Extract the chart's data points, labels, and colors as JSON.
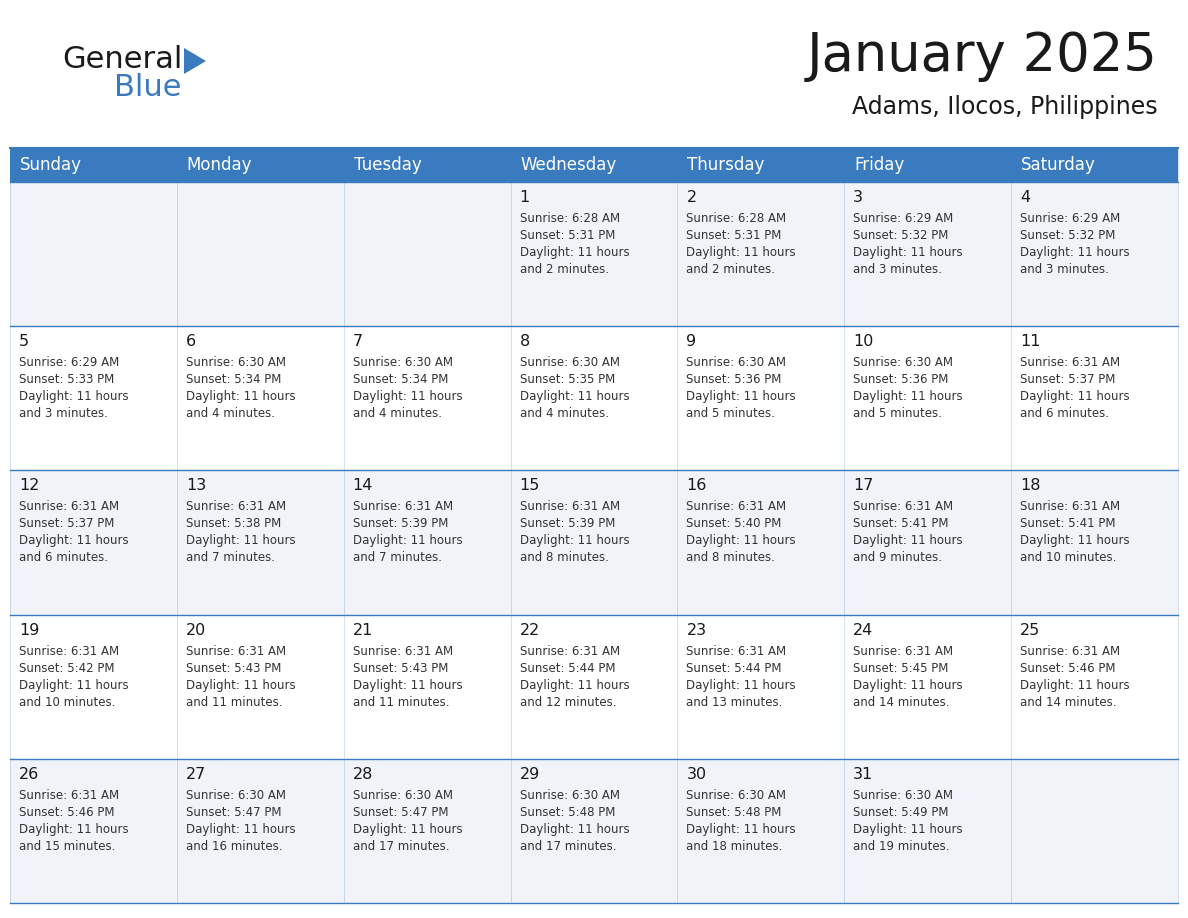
{
  "title": "January 2025",
  "subtitle": "Adams, Ilocos, Philippines",
  "header_color": "#3a7abf",
  "header_text_color": "#ffffff",
  "cell_bg_alt": "#f0f4f8",
  "cell_bg_white": "#ffffff",
  "border_color": "#3a7abf",
  "border_color_light": "#7aafd4",
  "day_headers": [
    "Sunday",
    "Monday",
    "Tuesday",
    "Wednesday",
    "Thursday",
    "Friday",
    "Saturday"
  ],
  "title_color": "#1a1a1a",
  "subtitle_color": "#1a1a1a",
  "day_num_color": "#1a1a1a",
  "info_color": "#333333",
  "logo_general_color": "#1a1a1a",
  "logo_blue_color": "#3a7abf",
  "logo_triangle_color": "#3a7abf",
  "days": [
    {
      "day": 1,
      "col": 3,
      "row": 0,
      "sunrise": "6:28 AM",
      "sunset": "5:31 PM",
      "daylight": "11 hours and 2 minutes."
    },
    {
      "day": 2,
      "col": 4,
      "row": 0,
      "sunrise": "6:28 AM",
      "sunset": "5:31 PM",
      "daylight": "11 hours and 2 minutes."
    },
    {
      "day": 3,
      "col": 5,
      "row": 0,
      "sunrise": "6:29 AM",
      "sunset": "5:32 PM",
      "daylight": "11 hours and 3 minutes."
    },
    {
      "day": 4,
      "col": 6,
      "row": 0,
      "sunrise": "6:29 AM",
      "sunset": "5:32 PM",
      "daylight": "11 hours and 3 minutes."
    },
    {
      "day": 5,
      "col": 0,
      "row": 1,
      "sunrise": "6:29 AM",
      "sunset": "5:33 PM",
      "daylight": "11 hours and 3 minutes."
    },
    {
      "day": 6,
      "col": 1,
      "row": 1,
      "sunrise": "6:30 AM",
      "sunset": "5:34 PM",
      "daylight": "11 hours and 4 minutes."
    },
    {
      "day": 7,
      "col": 2,
      "row": 1,
      "sunrise": "6:30 AM",
      "sunset": "5:34 PM",
      "daylight": "11 hours and 4 minutes."
    },
    {
      "day": 8,
      "col": 3,
      "row": 1,
      "sunrise": "6:30 AM",
      "sunset": "5:35 PM",
      "daylight": "11 hours and 4 minutes."
    },
    {
      "day": 9,
      "col": 4,
      "row": 1,
      "sunrise": "6:30 AM",
      "sunset": "5:36 PM",
      "daylight": "11 hours and 5 minutes."
    },
    {
      "day": 10,
      "col": 5,
      "row": 1,
      "sunrise": "6:30 AM",
      "sunset": "5:36 PM",
      "daylight": "11 hours and 5 minutes."
    },
    {
      "day": 11,
      "col": 6,
      "row": 1,
      "sunrise": "6:31 AM",
      "sunset": "5:37 PM",
      "daylight": "11 hours and 6 minutes."
    },
    {
      "day": 12,
      "col": 0,
      "row": 2,
      "sunrise": "6:31 AM",
      "sunset": "5:37 PM",
      "daylight": "11 hours and 6 minutes."
    },
    {
      "day": 13,
      "col": 1,
      "row": 2,
      "sunrise": "6:31 AM",
      "sunset": "5:38 PM",
      "daylight": "11 hours and 7 minutes."
    },
    {
      "day": 14,
      "col": 2,
      "row": 2,
      "sunrise": "6:31 AM",
      "sunset": "5:39 PM",
      "daylight": "11 hours and 7 minutes."
    },
    {
      "day": 15,
      "col": 3,
      "row": 2,
      "sunrise": "6:31 AM",
      "sunset": "5:39 PM",
      "daylight": "11 hours and 8 minutes."
    },
    {
      "day": 16,
      "col": 4,
      "row": 2,
      "sunrise": "6:31 AM",
      "sunset": "5:40 PM",
      "daylight": "11 hours and 8 minutes."
    },
    {
      "day": 17,
      "col": 5,
      "row": 2,
      "sunrise": "6:31 AM",
      "sunset": "5:41 PM",
      "daylight": "11 hours and 9 minutes."
    },
    {
      "day": 18,
      "col": 6,
      "row": 2,
      "sunrise": "6:31 AM",
      "sunset": "5:41 PM",
      "daylight": "11 hours and 10 minutes."
    },
    {
      "day": 19,
      "col": 0,
      "row": 3,
      "sunrise": "6:31 AM",
      "sunset": "5:42 PM",
      "daylight": "11 hours and 10 minutes."
    },
    {
      "day": 20,
      "col": 1,
      "row": 3,
      "sunrise": "6:31 AM",
      "sunset": "5:43 PM",
      "daylight": "11 hours and 11 minutes."
    },
    {
      "day": 21,
      "col": 2,
      "row": 3,
      "sunrise": "6:31 AM",
      "sunset": "5:43 PM",
      "daylight": "11 hours and 11 minutes."
    },
    {
      "day": 22,
      "col": 3,
      "row": 3,
      "sunrise": "6:31 AM",
      "sunset": "5:44 PM",
      "daylight": "11 hours and 12 minutes."
    },
    {
      "day": 23,
      "col": 4,
      "row": 3,
      "sunrise": "6:31 AM",
      "sunset": "5:44 PM",
      "daylight": "11 hours and 13 minutes."
    },
    {
      "day": 24,
      "col": 5,
      "row": 3,
      "sunrise": "6:31 AM",
      "sunset": "5:45 PM",
      "daylight": "11 hours and 14 minutes."
    },
    {
      "day": 25,
      "col": 6,
      "row": 3,
      "sunrise": "6:31 AM",
      "sunset": "5:46 PM",
      "daylight": "11 hours and 14 minutes."
    },
    {
      "day": 26,
      "col": 0,
      "row": 4,
      "sunrise": "6:31 AM",
      "sunset": "5:46 PM",
      "daylight": "11 hours and 15 minutes."
    },
    {
      "day": 27,
      "col": 1,
      "row": 4,
      "sunrise": "6:30 AM",
      "sunset": "5:47 PM",
      "daylight": "11 hours and 16 minutes."
    },
    {
      "day": 28,
      "col": 2,
      "row": 4,
      "sunrise": "6:30 AM",
      "sunset": "5:47 PM",
      "daylight": "11 hours and 17 minutes."
    },
    {
      "day": 29,
      "col": 3,
      "row": 4,
      "sunrise": "6:30 AM",
      "sunset": "5:48 PM",
      "daylight": "11 hours and 17 minutes."
    },
    {
      "day": 30,
      "col": 4,
      "row": 4,
      "sunrise": "6:30 AM",
      "sunset": "5:48 PM",
      "daylight": "11 hours and 18 minutes."
    },
    {
      "day": 31,
      "col": 5,
      "row": 4,
      "sunrise": "6:30 AM",
      "sunset": "5:49 PM",
      "daylight": "11 hours and 19 minutes."
    }
  ]
}
